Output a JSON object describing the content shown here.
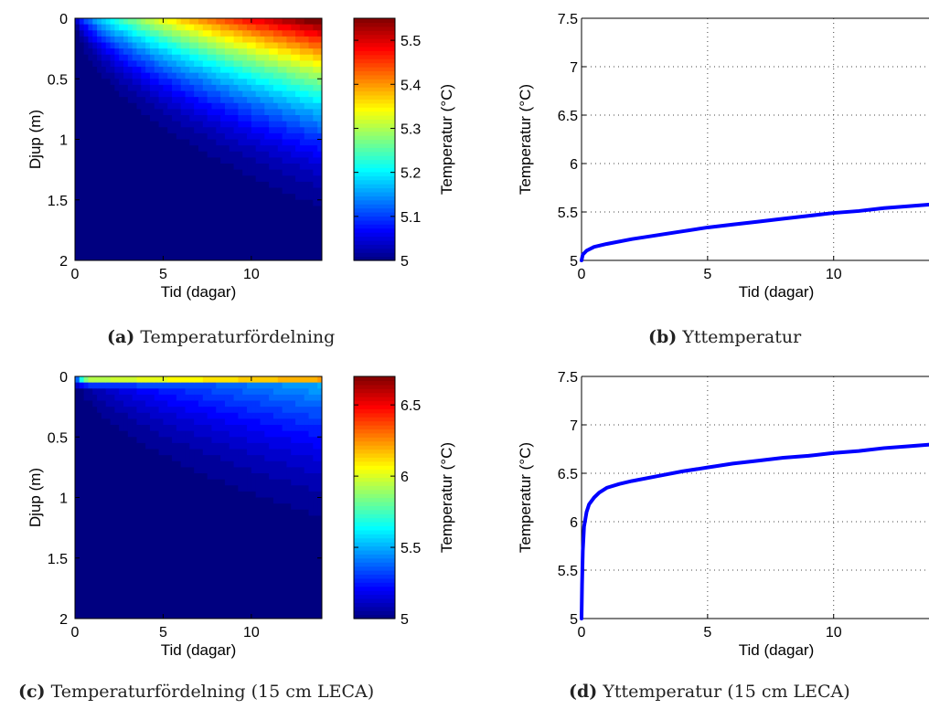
{
  "captions": [
    {
      "letter": "(a)",
      "text": "Temperaturfördelning"
    },
    {
      "letter": "(b)",
      "text": "Yttemperatur"
    },
    {
      "letter": "(c)",
      "text": "Temperaturfördelning (15 cm LECA)"
    },
    {
      "letter": "(d)",
      "text": "Yttemperatur (15 cm LECA)"
    }
  ],
  "chart_data": [
    {
      "type": "heatmap",
      "xlabel": "Tid (dagar)",
      "ylabel": "Djup (m)",
      "xlim": [
        0,
        14
      ],
      "ylim": [
        0,
        2
      ],
      "y_inverted": true,
      "xticks": [
        "0",
        "5",
        "10"
      ],
      "yticks": [
        "0",
        "0.5",
        "1",
        "1.5",
        "2"
      ],
      "colorbar": {
        "label": "Temperatur (°C)",
        "min": 5,
        "max": 5.55,
        "ticks": [
          "5",
          "5.1",
          "5.2",
          "5.3",
          "5.4",
          "5.5"
        ],
        "colormap": "jet"
      },
      "surface_temperature_max": 5.58,
      "penetration_depth_at_end_m": 1.8
    },
    {
      "type": "line",
      "xlabel": "Tid (dagar)",
      "ylabel": "Temperatur (°C)",
      "xlim": [
        0,
        14
      ],
      "ylim": [
        5,
        7.5
      ],
      "xticks": [
        "0",
        "5",
        "10"
      ],
      "yticks": [
        "5",
        "5.5",
        "6",
        "6.5",
        "7",
        "7.5"
      ],
      "grid": true,
      "color": "#0000ff",
      "x": [
        0,
        0.05,
        0.2,
        0.5,
        1,
        2,
        3,
        4,
        5,
        6,
        7,
        8,
        9,
        10,
        11,
        12,
        13,
        14
      ],
      "y": [
        5.0,
        5.06,
        5.1,
        5.14,
        5.17,
        5.22,
        5.26,
        5.3,
        5.34,
        5.37,
        5.4,
        5.43,
        5.46,
        5.49,
        5.51,
        5.54,
        5.56,
        5.58
      ]
    },
    {
      "type": "heatmap",
      "xlabel": "Tid (dagar)",
      "ylabel": "Djup (m)",
      "xlim": [
        0,
        14
      ],
      "ylim": [
        0,
        2
      ],
      "y_inverted": true,
      "xticks": [
        "0",
        "5",
        "10"
      ],
      "yticks": [
        "0",
        "0.5",
        "1",
        "1.5",
        "2"
      ],
      "colorbar": {
        "label": "Temperatur (°C)",
        "min": 5,
        "max": 6.7,
        "ticks": [
          "5",
          "5.5",
          "6",
          "6.5"
        ],
        "colormap": "jet"
      },
      "surface_temperature_max": 6.8,
      "penetration_depth_at_end_m": 1.45
    },
    {
      "type": "line",
      "xlabel": "Tid (dagar)",
      "ylabel": "Temperatur (°C)",
      "xlim": [
        0,
        14
      ],
      "ylim": [
        5,
        7.5
      ],
      "xticks": [
        "0",
        "5",
        "10"
      ],
      "yticks": [
        "5",
        "5.5",
        "6",
        "6.5",
        "7",
        "7.5"
      ],
      "grid": true,
      "color": "#0000ff",
      "x": [
        0,
        0.02,
        0.05,
        0.1,
        0.2,
        0.3,
        0.5,
        0.7,
        1,
        1.5,
        2,
        3,
        4,
        5,
        6,
        7,
        8,
        9,
        10,
        11,
        12,
        13,
        14
      ],
      "y": [
        5.0,
        5.35,
        5.7,
        5.95,
        6.1,
        6.18,
        6.25,
        6.3,
        6.35,
        6.39,
        6.42,
        6.47,
        6.52,
        6.56,
        6.6,
        6.63,
        6.66,
        6.68,
        6.71,
        6.73,
        6.76,
        6.78,
        6.8
      ]
    }
  ]
}
